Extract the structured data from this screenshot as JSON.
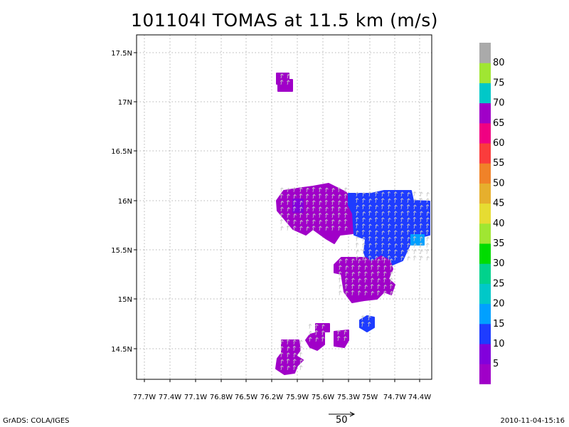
{
  "title": "101104I TOMAS at 11.5 km (m/s)",
  "map": {
    "lat_labels": [
      "17.5N",
      "17N",
      "16.5N",
      "16N",
      "15.5N",
      "15N",
      "14.5N"
    ],
    "lon_labels": [
      "77.7W",
      "77.4W",
      "77.1W",
      "76.8W",
      "76.5W",
      "76.2W",
      "75.9W",
      "75.6W",
      "75.3W",
      "75W",
      "74.7W",
      "74.4W"
    ],
    "grid": true,
    "field_colors": {
      "purple": "#a000c8",
      "violet": "#8200dc",
      "blue": "#1e3cff",
      "light_blue": "#00a0ff"
    },
    "vector_color": "#c8c8c8"
  },
  "colorbar": {
    "labels": [
      "5",
      "10",
      "15",
      "20",
      "25",
      "30",
      "35",
      "40",
      "45",
      "50",
      "55",
      "60",
      "65",
      "70",
      "75",
      "80"
    ],
    "colors": [
      "#a000c8",
      "#8200dc",
      "#1e3cff",
      "#00a0ff",
      "#00c8c8",
      "#00d28c",
      "#00dc00",
      "#a0e632",
      "#e6dc32",
      "#e6af2d",
      "#f08228",
      "#fa3c3c",
      "#f00082",
      "#a000c8",
      "#00c8c8",
      "#a0e632",
      "#aaaaaa"
    ]
  },
  "reference_vector": {
    "label": "50"
  },
  "footer": {
    "left": "GrADS: COLA/IGES",
    "right": "2010-11-04-15:16"
  }
}
